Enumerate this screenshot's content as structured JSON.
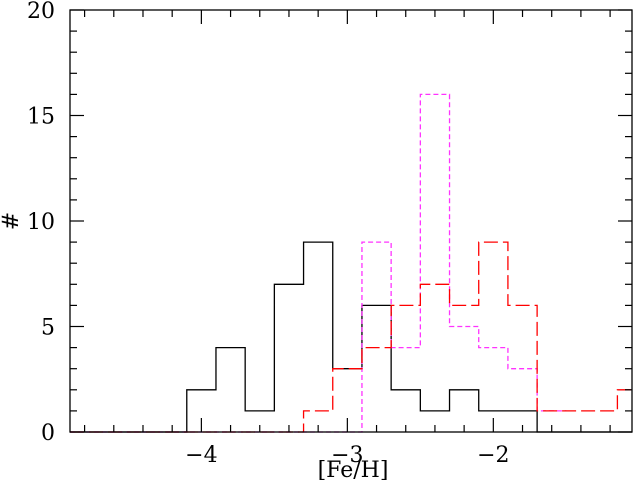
{
  "chart_data": {
    "type": "histogram",
    "xlabel": "[Fe/H]",
    "ylabel": "#",
    "xlim": [
      -4.9,
      -1.05
    ],
    "ylim": [
      0,
      20
    ],
    "x_ticks": [
      -4,
      -3,
      -2
    ],
    "x_tick_labels": [
      "−4",
      "−3",
      "−2"
    ],
    "y_ticks": [
      0,
      5,
      10,
      15,
      20
    ],
    "y_tick_labels": [
      "0",
      "5",
      "10",
      "15",
      "20"
    ],
    "bin_width": 0.2,
    "series": [
      {
        "style": "solid",
        "color": "#000000",
        "bin_edges": [
          -4.9,
          -4.1,
          -3.9,
          -3.7,
          -3.5,
          -3.3,
          -3.1,
          -2.9,
          -2.7,
          -2.5,
          -2.3,
          -2.1,
          -1.9,
          -1.7,
          -1.05
        ],
        "counts": [
          0,
          2,
          4,
          1,
          7,
          9,
          3,
          6,
          2,
          1,
          2,
          1,
          1,
          0
        ]
      },
      {
        "style": "short-dashed",
        "color": "#ff33ff",
        "bin_edges": [
          -4.9,
          -2.9,
          -2.7,
          -2.5,
          -2.3,
          -2.1,
          -1.9,
          -1.7,
          -1.5
        ],
        "counts": [
          0,
          9,
          4,
          16,
          5,
          4,
          3,
          1
        ]
      },
      {
        "style": "long-dashed",
        "color": "#ff0000",
        "bin_edges": [
          -4.9,
          -3.3,
          -3.1,
          -2.9,
          -2.7,
          -2.5,
          -2.3,
          -2.1,
          -1.9,
          -1.7,
          -1.5,
          -1.3,
          -1.15,
          -1.05
        ],
        "counts": [
          0,
          1,
          3,
          4,
          6,
          7,
          6,
          9,
          6,
          1,
          1,
          1,
          2
        ]
      }
    ]
  }
}
